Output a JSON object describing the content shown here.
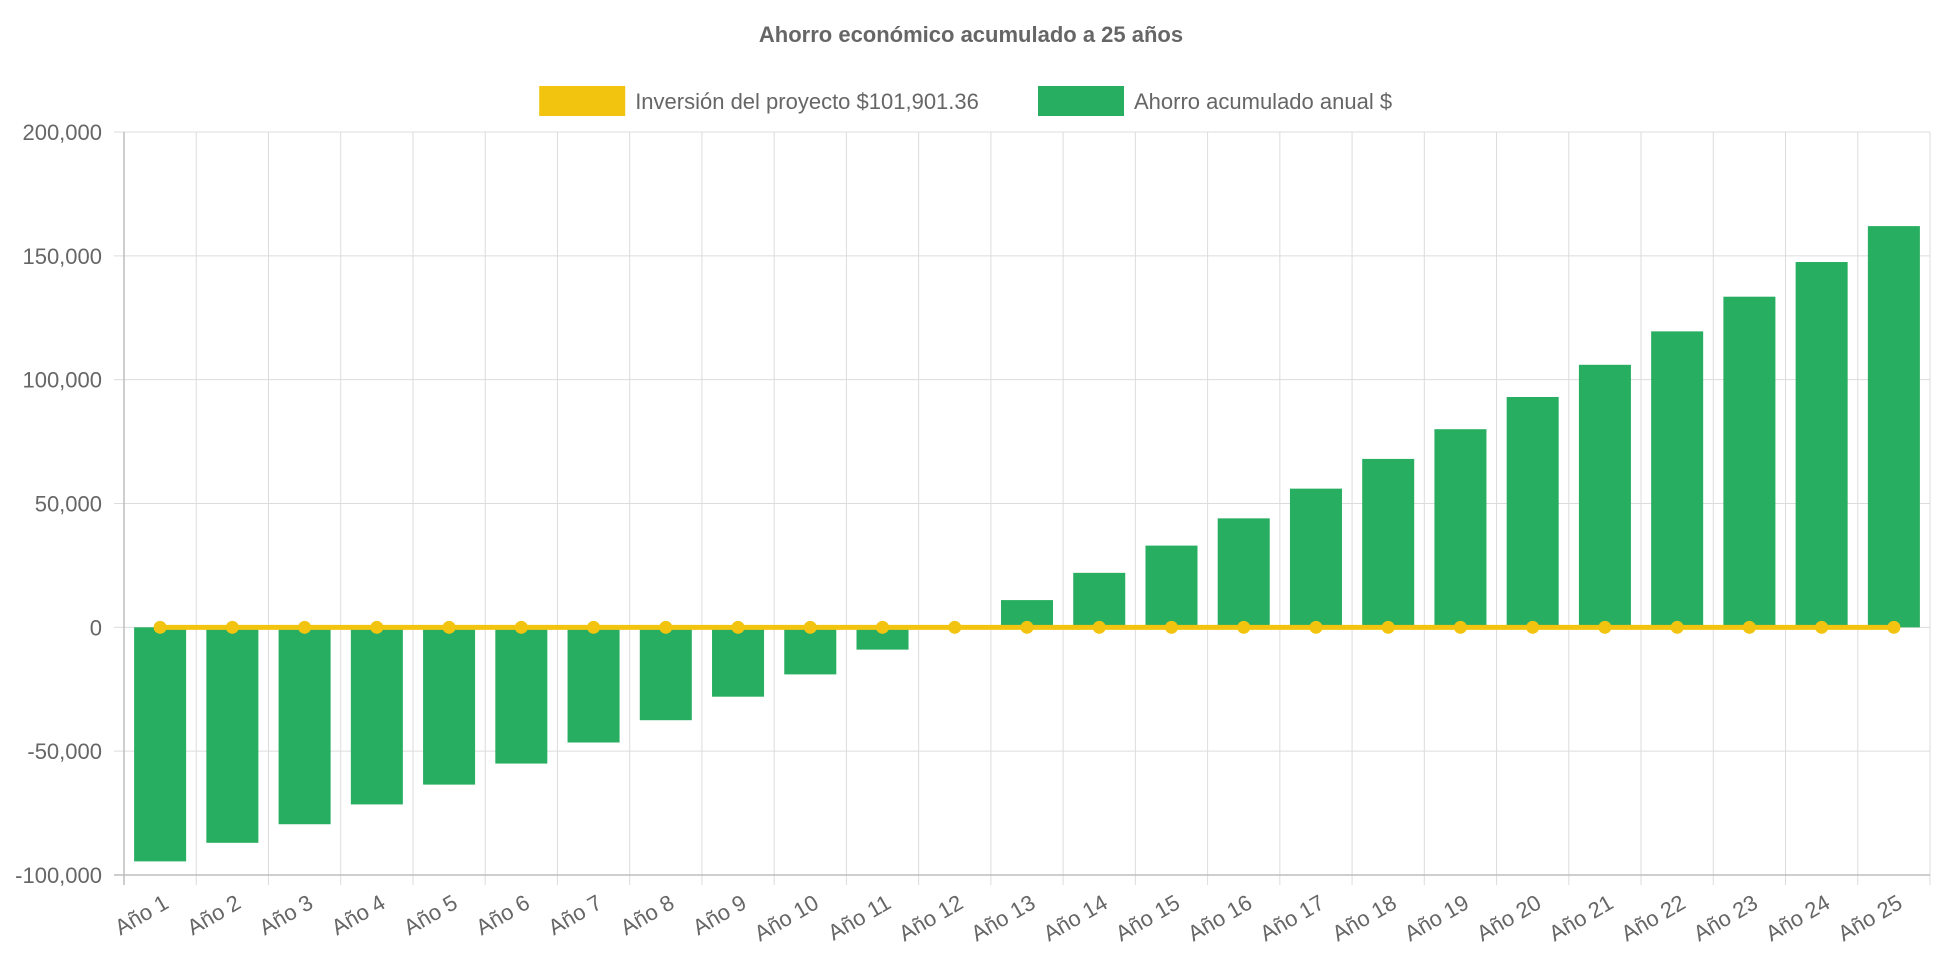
{
  "chart_data": {
    "type": "bar",
    "title": "Ahorro económico acumulado a 25 años",
    "xlabel": "",
    "ylabel": "",
    "ylim": [
      -100000,
      200000
    ],
    "yticks": [
      200000,
      150000,
      100000,
      50000,
      0,
      -50000,
      -100000
    ],
    "ytick_labels": [
      "200,000",
      "150,000",
      "100,000",
      "50,000",
      "0",
      "-50,000",
      "-100,000"
    ],
    "grid": true,
    "legend_position": "top-center",
    "categories": [
      "Año 1",
      "Año 2",
      "Año 3",
      "Año 4",
      "Año 5",
      "Año 6",
      "Año 7",
      "Año 8",
      "Año 9",
      "Año 10",
      "Año 11",
      "Año 12",
      "Año 13",
      "Año 14",
      "Año 15",
      "Año 16",
      "Año 17",
      "Año 18",
      "Año 19",
      "Año 20",
      "Año 21",
      "Año 22",
      "Año 23",
      "Año 24",
      "Año 25"
    ],
    "series": [
      {
        "name": "Inversión del proyecto $101,901.36",
        "type": "line",
        "color": "#f2c40f",
        "values": [
          0,
          0,
          0,
          0,
          0,
          0,
          0,
          0,
          0,
          0,
          0,
          0,
          0,
          0,
          0,
          0,
          0,
          0,
          0,
          0,
          0,
          0,
          0,
          0,
          0
        ]
      },
      {
        "name": "Ahorro acumulado anual $",
        "type": "bar",
        "color": "#27ae60",
        "values": [
          -94500,
          -87000,
          -79500,
          -71500,
          -63500,
          -55000,
          -46500,
          -37500,
          -28000,
          -19000,
          -9000,
          0,
          11000,
          22000,
          33000,
          44000,
          56000,
          68000,
          80000,
          93000,
          106000,
          119500,
          133500,
          147500,
          162000
        ]
      }
    ]
  }
}
